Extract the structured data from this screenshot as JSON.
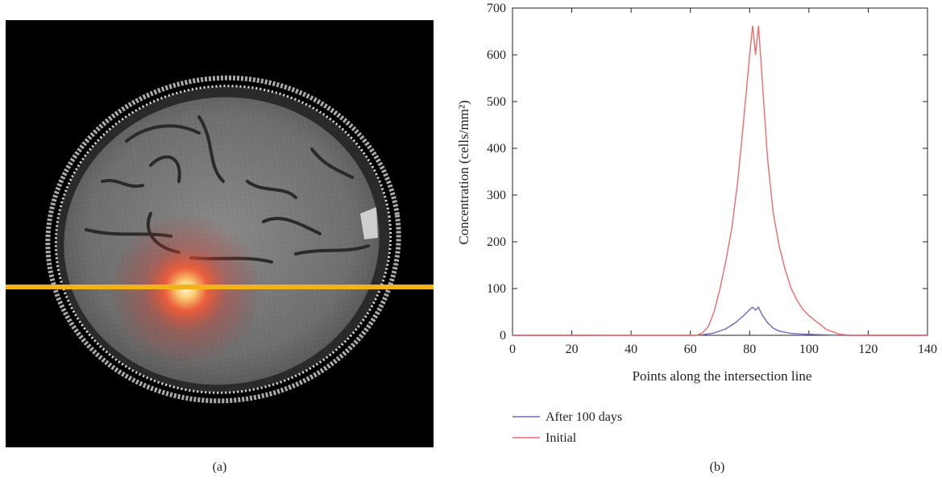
{
  "panels": {
    "a_caption": "(a)",
    "b_caption": "(b)"
  },
  "image_a": {
    "background": "#000000",
    "scan_line_color": "#f2b21a",
    "tumor_color": "#ff4a2a"
  },
  "chart_data": {
    "type": "line",
    "title": "",
    "xlabel": "Points along the intersection line",
    "ylabel": "Concentration (cells/mm²)",
    "xlim": [
      0,
      140
    ],
    "ylim": [
      0,
      700
    ],
    "xticks": [
      0,
      20,
      40,
      60,
      80,
      100,
      120,
      140
    ],
    "yticks": [
      0,
      100,
      200,
      300,
      400,
      500,
      600,
      700
    ],
    "grid": false,
    "legend_position": "below-left",
    "series": [
      {
        "name": "After 100 days",
        "color": "#6a6ab8",
        "x": [
          0,
          60,
          64,
          68,
          72,
          75,
          78,
          80,
          81,
          82,
          83,
          84,
          86,
          88,
          90,
          94,
          100,
          110,
          140
        ],
        "y": [
          0,
          0,
          1,
          5,
          14,
          26,
          42,
          55,
          60,
          54,
          60,
          46,
          27,
          15,
          9,
          4,
          2,
          0,
          0
        ]
      },
      {
        "name": "Initial",
        "color": "#f06a6a",
        "x": [
          0,
          62,
          64,
          66,
          68,
          70,
          72,
          74,
          76,
          78,
          80,
          81,
          82,
          83,
          84,
          86,
          88,
          90,
          92,
          94,
          96,
          98,
          100,
          102,
          104,
          106,
          110,
          114,
          140
        ],
        "y": [
          0,
          0,
          5,
          18,
          50,
          100,
          160,
          230,
          330,
          460,
          600,
          662,
          600,
          662,
          570,
          380,
          260,
          190,
          140,
          100,
          75,
          55,
          42,
          32,
          22,
          12,
          3,
          0,
          0
        ]
      }
    ]
  }
}
